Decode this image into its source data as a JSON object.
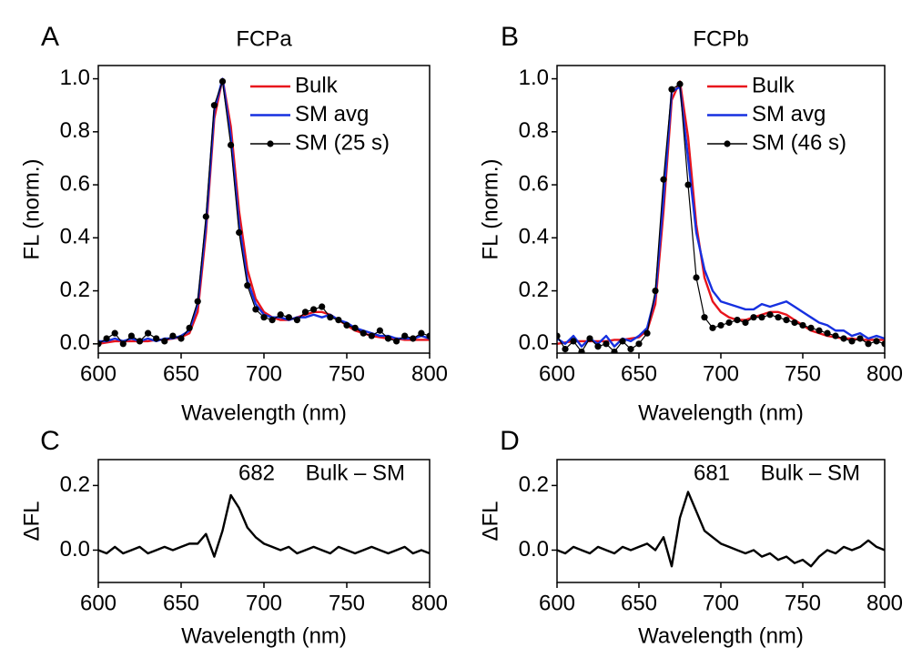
{
  "chart_data": [
    {
      "type": "line",
      "panel_label": "A",
      "title": "FCPa",
      "xlabel": "Wavelength (nm)",
      "ylabel": "FL (norm.)",
      "x": [
        600,
        605,
        610,
        615,
        620,
        625,
        630,
        635,
        640,
        645,
        650,
        655,
        660,
        665,
        670,
        675,
        680,
        685,
        690,
        695,
        700,
        705,
        710,
        715,
        720,
        725,
        730,
        735,
        740,
        745,
        750,
        755,
        760,
        765,
        770,
        775,
        780,
        785,
        790,
        795,
        800
      ],
      "xlim": [
        600,
        800
      ],
      "xticks": [
        600,
        650,
        700,
        750,
        800
      ],
      "ylim": [
        -0.035,
        1.05
      ],
      "yticks": [
        {
          "value": 0,
          "label": "0.0"
        },
        0.2,
        0.4,
        0.6,
        0.8,
        {
          "value": 1,
          "label": "1.0"
        }
      ],
      "series": [
        {
          "name": "Bulk",
          "color": "#e8141c",
          "markers": false,
          "values": [
            0,
            0.005,
            0.01,
            0.01,
            0.01,
            0.01,
            0.01,
            0.015,
            0.015,
            0.02,
            0.025,
            0.04,
            0.12,
            0.42,
            0.85,
            1.0,
            0.82,
            0.5,
            0.28,
            0.17,
            0.12,
            0.1,
            0.09,
            0.09,
            0.1,
            0.11,
            0.12,
            0.12,
            0.11,
            0.09,
            0.07,
            0.05,
            0.04,
            0.03,
            0.025,
            0.02,
            0.02,
            0.015,
            0.015,
            0.015,
            0.015
          ]
        },
        {
          "name": "SM avg",
          "color": "#1630e0",
          "markers": false,
          "values": [
            0.01,
            0.01,
            0.02,
            0.01,
            0.02,
            0.01,
            0.02,
            0.01,
            0.02,
            0.02,
            0.03,
            0.05,
            0.15,
            0.45,
            0.88,
            1.0,
            0.78,
            0.45,
            0.24,
            0.15,
            0.11,
            0.1,
            0.1,
            0.09,
            0.1,
            0.1,
            0.11,
            0.1,
            0.11,
            0.09,
            0.08,
            0.06,
            0.05,
            0.04,
            0.03,
            0.03,
            0.02,
            0.02,
            0.02,
            0.03,
            0.02
          ]
        },
        {
          "name": "SM (25 s)",
          "color": "#000000",
          "markers": true,
          "values": [
            0.0,
            0.02,
            0.04,
            0.0,
            0.03,
            0.01,
            0.04,
            0.02,
            0.01,
            0.03,
            0.02,
            0.06,
            0.16,
            0.48,
            0.9,
            0.99,
            0.75,
            0.42,
            0.22,
            0.13,
            0.1,
            0.09,
            0.11,
            0.1,
            0.09,
            0.12,
            0.13,
            0.14,
            0.1,
            0.09,
            0.07,
            0.06,
            0.04,
            0.03,
            0.05,
            0.02,
            0.01,
            0.03,
            0.02,
            0.04,
            0.03
          ]
        }
      ]
    },
    {
      "type": "line",
      "panel_label": "B",
      "title": "FCPb",
      "xlabel": "Wavelength (nm)",
      "ylabel": "FL (norm.)",
      "x": [
        600,
        605,
        610,
        615,
        620,
        625,
        630,
        635,
        640,
        645,
        650,
        655,
        660,
        665,
        670,
        675,
        680,
        685,
        690,
        695,
        700,
        705,
        710,
        715,
        720,
        725,
        730,
        735,
        740,
        745,
        750,
        755,
        760,
        765,
        770,
        775,
        780,
        785,
        790,
        795,
        800
      ],
      "xlim": [
        600,
        800
      ],
      "xticks": [
        600,
        650,
        700,
        750,
        800
      ],
      "ylim": [
        -0.035,
        1.05
      ],
      "yticks": [
        {
          "value": 0,
          "label": "0.0"
        },
        0.2,
        0.4,
        0.6,
        0.8,
        {
          "value": 1,
          "label": "1.0"
        }
      ],
      "series": [
        {
          "name": "Bulk",
          "color": "#e8141c",
          "markers": false,
          "values": [
            0,
            0.005,
            0.01,
            0.01,
            0.01,
            0.01,
            0.01,
            0.015,
            0.015,
            0.02,
            0.025,
            0.05,
            0.15,
            0.5,
            0.92,
            0.99,
            0.78,
            0.45,
            0.25,
            0.16,
            0.12,
            0.1,
            0.09,
            0.09,
            0.1,
            0.11,
            0.12,
            0.12,
            0.11,
            0.09,
            0.07,
            0.05,
            0.04,
            0.03,
            0.025,
            0.02,
            0.02,
            0.015,
            0.015,
            0.015,
            0.015
          ]
        },
        {
          "name": "SM avg",
          "color": "#1630e0",
          "markers": false,
          "values": [
            0.02,
            0.0,
            0.03,
            -0.01,
            0.02,
            0.0,
            0.03,
            -0.01,
            0.02,
            0.01,
            0.03,
            0.06,
            0.18,
            0.55,
            0.95,
            0.97,
            0.7,
            0.42,
            0.28,
            0.2,
            0.16,
            0.15,
            0.14,
            0.13,
            0.13,
            0.15,
            0.14,
            0.15,
            0.16,
            0.14,
            0.12,
            0.1,
            0.08,
            0.07,
            0.05,
            0.05,
            0.03,
            0.04,
            0.02,
            0.03,
            0.02
          ]
        },
        {
          "name": "SM (46 s)",
          "color": "#000000",
          "markers": true,
          "values": [
            0.03,
            -0.02,
            0.01,
            -0.03,
            0.02,
            -0.01,
            0.0,
            -0.03,
            0.01,
            -0.02,
            0.0,
            0.04,
            0.2,
            0.62,
            0.96,
            0.98,
            0.6,
            0.25,
            0.1,
            0.06,
            0.07,
            0.08,
            0.09,
            0.08,
            0.1,
            0.1,
            0.11,
            0.1,
            0.09,
            0.08,
            0.07,
            0.06,
            0.05,
            0.04,
            0.03,
            0.02,
            0.01,
            0.02,
            0.0,
            0.01,
            0.0
          ]
        }
      ]
    },
    {
      "type": "line",
      "panel_label": "C",
      "xlabel": "Wavelength (nm)",
      "ylabel": "ΔFL",
      "annotations": [
        "682",
        "Bulk – SM"
      ],
      "x": [
        600,
        605,
        610,
        615,
        620,
        625,
        630,
        635,
        640,
        645,
        650,
        655,
        660,
        665,
        670,
        675,
        680,
        685,
        690,
        695,
        700,
        705,
        710,
        715,
        720,
        725,
        730,
        735,
        740,
        745,
        750,
        755,
        760,
        765,
        770,
        775,
        780,
        785,
        790,
        795,
        800
      ],
      "xlim": [
        600,
        800
      ],
      "xticks": [
        600,
        650,
        700,
        750,
        800
      ],
      "ylim": [
        -0.1,
        0.28
      ],
      "yticks": [
        {
          "value": 0,
          "label": "0.0"
        },
        0.2
      ],
      "series": [
        {
          "color": "#000000",
          "markers": false,
          "values": [
            0.0,
            -0.01,
            0.01,
            -0.01,
            0.0,
            0.01,
            -0.01,
            0.0,
            0.01,
            0.0,
            0.01,
            0.02,
            0.02,
            0.05,
            -0.02,
            0.06,
            0.17,
            0.13,
            0.07,
            0.04,
            0.02,
            0.01,
            0.0,
            0.01,
            -0.01,
            0.0,
            0.01,
            0.0,
            -0.01,
            0.01,
            0.0,
            -0.01,
            0.0,
            0.01,
            0.0,
            -0.01,
            0.0,
            0.01,
            -0.01,
            0.0,
            -0.01
          ]
        }
      ]
    },
    {
      "type": "line",
      "panel_label": "D",
      "xlabel": "Wavelength (nm)",
      "ylabel": "ΔFL",
      "annotations": [
        "681",
        "Bulk – SM"
      ],
      "x": [
        600,
        605,
        610,
        615,
        620,
        625,
        630,
        635,
        640,
        645,
        650,
        655,
        660,
        665,
        670,
        675,
        680,
        685,
        690,
        695,
        700,
        705,
        710,
        715,
        720,
        725,
        730,
        735,
        740,
        745,
        750,
        755,
        760,
        765,
        770,
        775,
        780,
        785,
        790,
        795,
        800
      ],
      "xlim": [
        600,
        800
      ],
      "xticks": [
        600,
        650,
        700,
        750,
        800
      ],
      "ylim": [
        -0.1,
        0.28
      ],
      "yticks": [
        {
          "value": 0,
          "label": "0.0"
        },
        0.2
      ],
      "series": [
        {
          "color": "#000000",
          "markers": false,
          "values": [
            0.0,
            -0.01,
            0.01,
            0.0,
            -0.01,
            0.01,
            0.0,
            -0.01,
            0.01,
            0.0,
            0.01,
            0.02,
            0.0,
            0.04,
            -0.05,
            0.1,
            0.18,
            0.12,
            0.06,
            0.04,
            0.02,
            0.01,
            0.0,
            -0.01,
            0.0,
            -0.02,
            -0.01,
            -0.03,
            -0.02,
            -0.04,
            -0.03,
            -0.05,
            -0.02,
            0.0,
            -0.01,
            0.01,
            0.0,
            0.01,
            0.03,
            0.01,
            0.0
          ]
        }
      ]
    }
  ]
}
